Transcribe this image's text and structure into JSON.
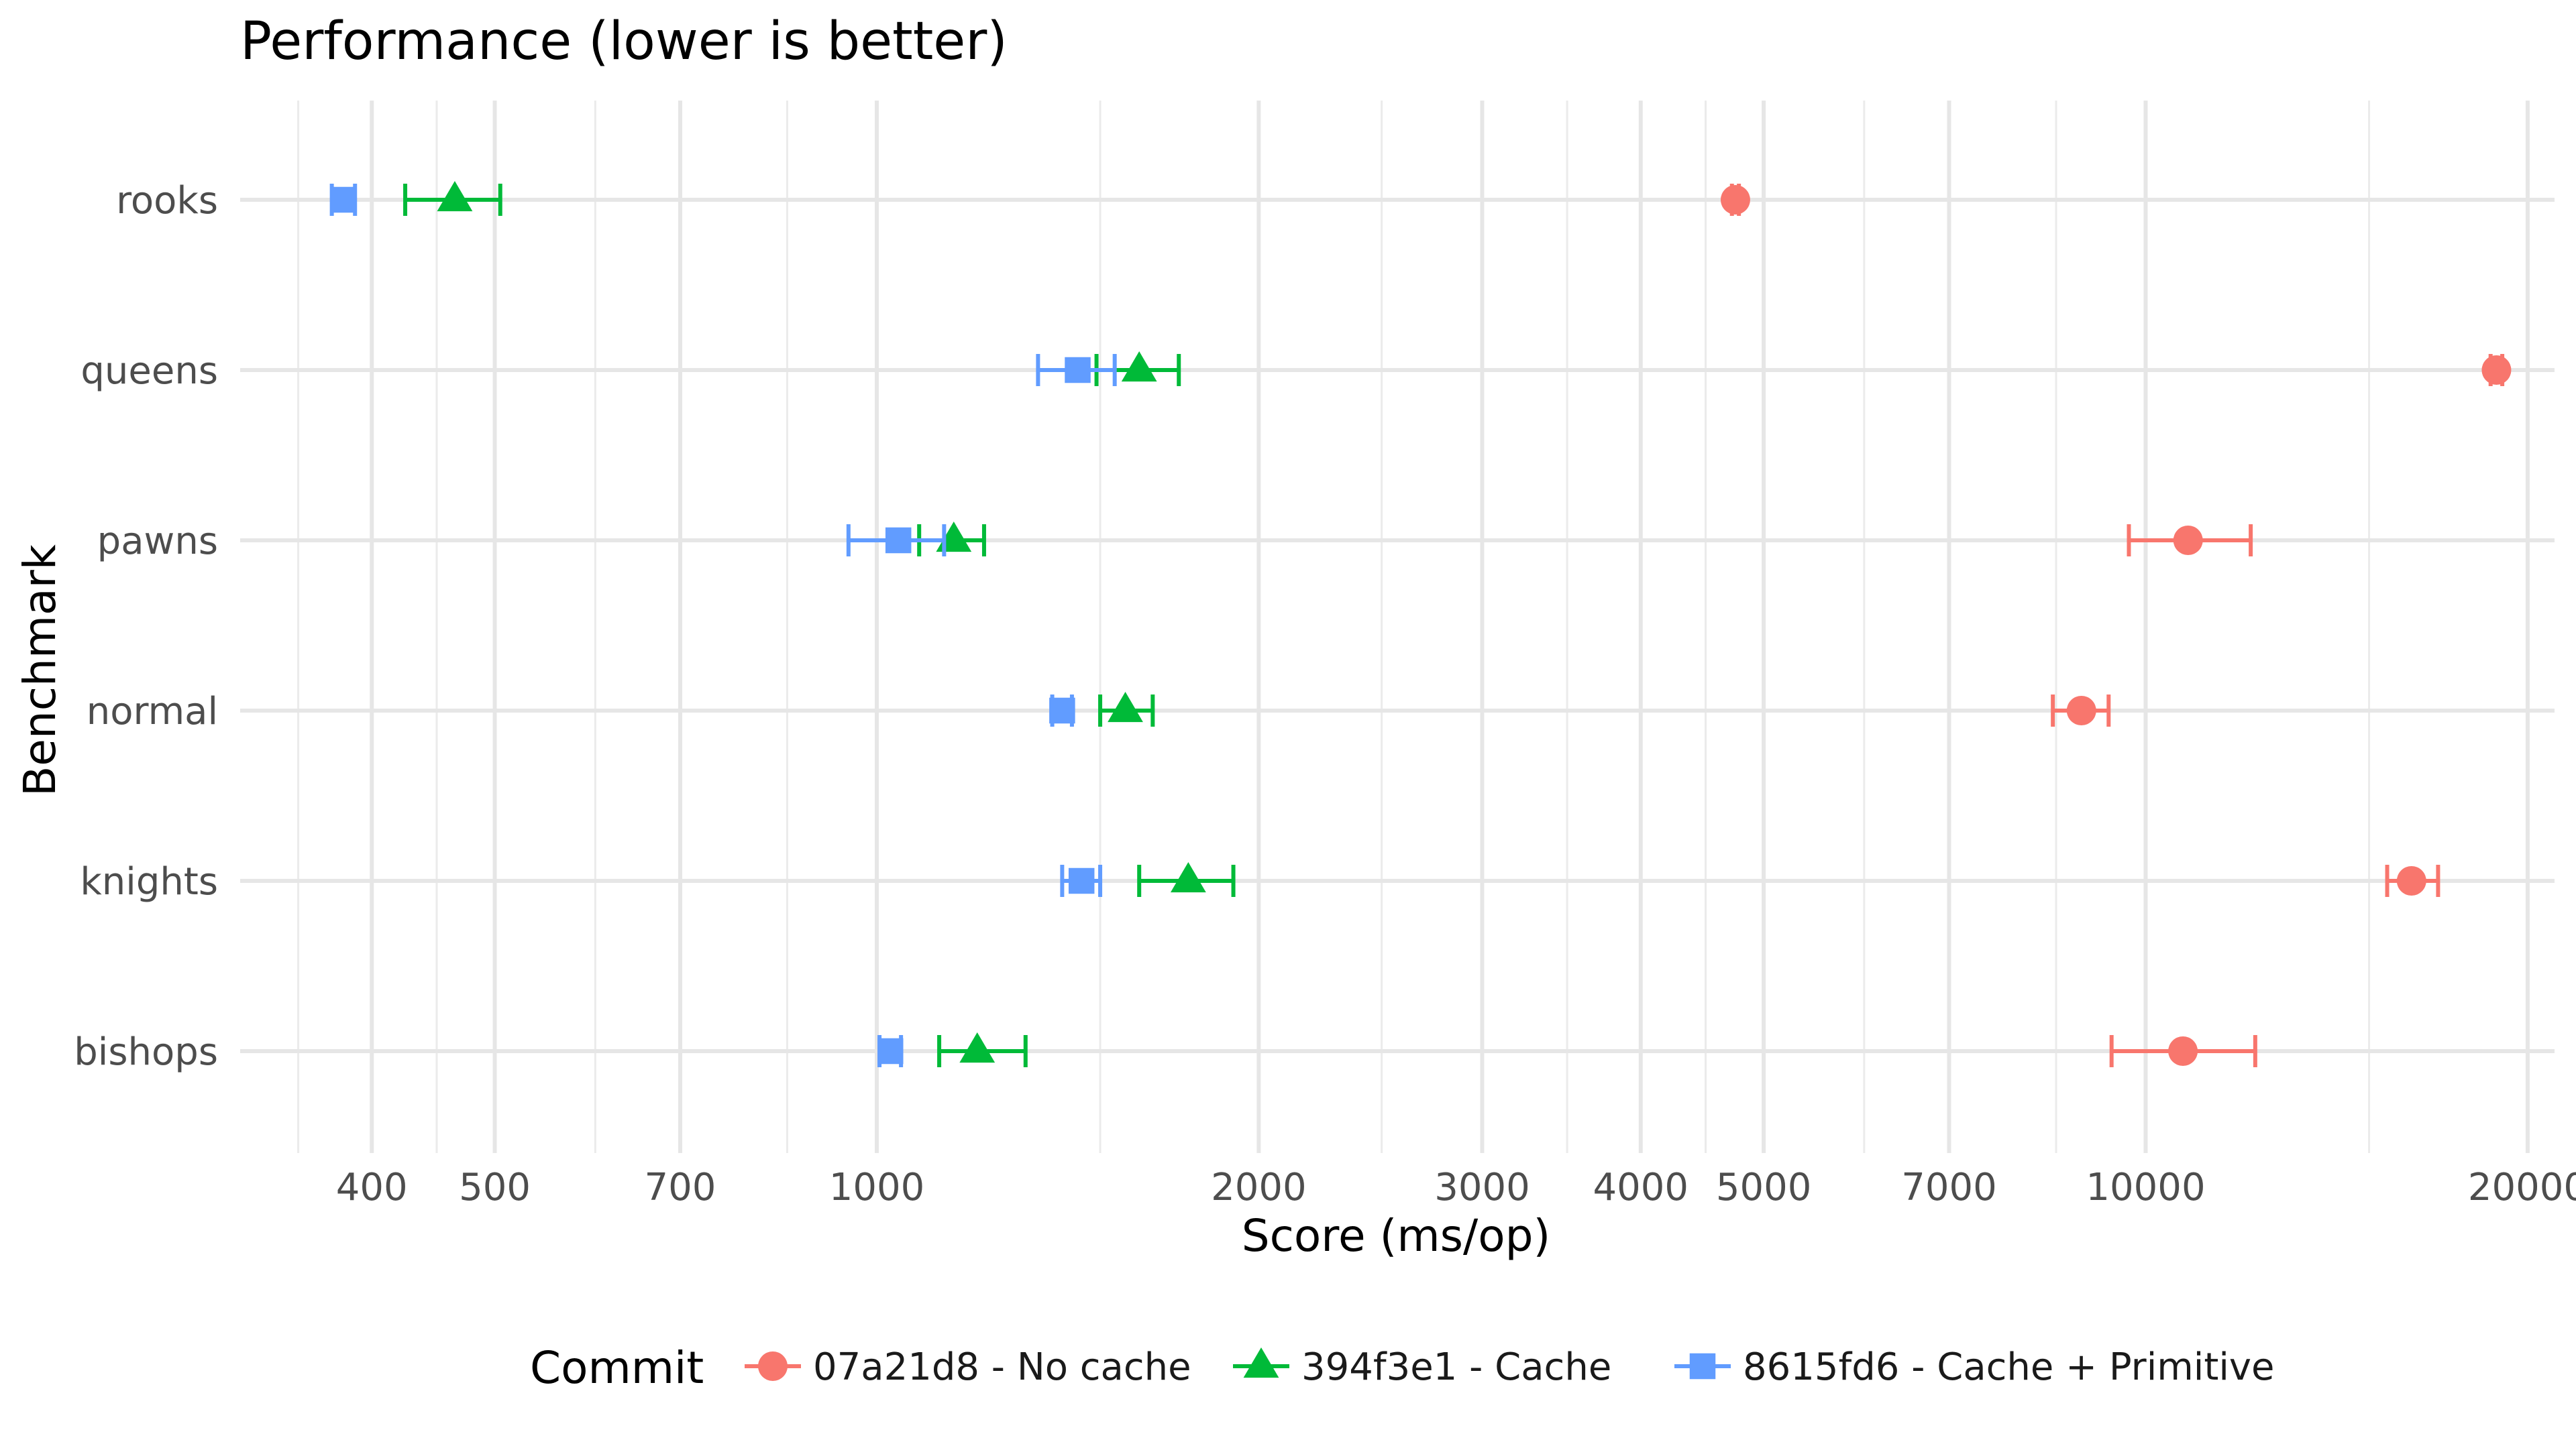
{
  "chart_data": {
    "type": "scatter",
    "title": "Performance (lower is better)",
    "xlabel": "Score (ms/op)",
    "ylabel": "Benchmark",
    "x_scale": "log",
    "xlim": [
      315,
      21000
    ],
    "x_ticks": [
      400,
      500,
      700,
      1000,
      2000,
      3000,
      4000,
      5000,
      7000,
      10000,
      20000
    ],
    "x_tick_labels": [
      "400",
      "500",
      "700",
      "1000",
      "2000",
      "3000",
      "4000",
      "5000",
      "7000",
      "10000",
      "20000"
    ],
    "x_minor_ticks": [
      350,
      450,
      600,
      850,
      1500,
      2500,
      3500,
      4500,
      6000,
      8500,
      15000
    ],
    "categories": [
      "bishops",
      "knights",
      "normal",
      "pawns",
      "queens",
      "rooks"
    ],
    "grid": true,
    "legend": {
      "title": "Commit",
      "position": "bottom"
    },
    "series": [
      {
        "name": "07a21d8 - No cache",
        "color": "#F8766D",
        "marker": "circle",
        "points": [
          {
            "category": "bishops",
            "value": 10700,
            "err_low": 9400,
            "err_high": 12200
          },
          {
            "category": "knights",
            "value": 16200,
            "err_low": 15500,
            "err_high": 17000
          },
          {
            "category": "normal",
            "value": 8900,
            "err_low": 8450,
            "err_high": 9350
          },
          {
            "category": "pawns",
            "value": 10800,
            "err_low": 9700,
            "err_high": 12100
          },
          {
            "category": "queens",
            "value": 18900,
            "err_low": 18700,
            "err_high": 19100
          },
          {
            "category": "rooks",
            "value": 4750,
            "err_low": 4720,
            "err_high": 4780
          }
        ]
      },
      {
        "name": "394f3e1 - Cache",
        "color": "#00BA38",
        "marker": "triangle",
        "points": [
          {
            "category": "bishops",
            "value": 1200,
            "err_low": 1120,
            "err_high": 1310
          },
          {
            "category": "knights",
            "value": 1760,
            "err_low": 1610,
            "err_high": 1910
          },
          {
            "category": "normal",
            "value": 1570,
            "err_low": 1500,
            "err_high": 1650
          },
          {
            "category": "pawns",
            "value": 1150,
            "err_low": 1080,
            "err_high": 1215
          },
          {
            "category": "queens",
            "value": 1610,
            "err_low": 1490,
            "err_high": 1730
          },
          {
            "category": "rooks",
            "value": 465,
            "err_low": 425,
            "err_high": 505
          }
        ]
      },
      {
        "name": "8615fd6 - Cache + Primitive",
        "color": "#619CFF",
        "marker": "square",
        "points": [
          {
            "category": "bishops",
            "value": 1025,
            "err_low": 1005,
            "err_high": 1045
          },
          {
            "category": "knights",
            "value": 1450,
            "err_low": 1400,
            "err_high": 1500
          },
          {
            "category": "normal",
            "value": 1400,
            "err_low": 1375,
            "err_high": 1425
          },
          {
            "category": "pawns",
            "value": 1040,
            "err_low": 950,
            "err_high": 1130
          },
          {
            "category": "queens",
            "value": 1440,
            "err_low": 1340,
            "err_high": 1540
          },
          {
            "category": "rooks",
            "value": 380,
            "err_low": 372,
            "err_high": 388
          }
        ]
      }
    ]
  }
}
